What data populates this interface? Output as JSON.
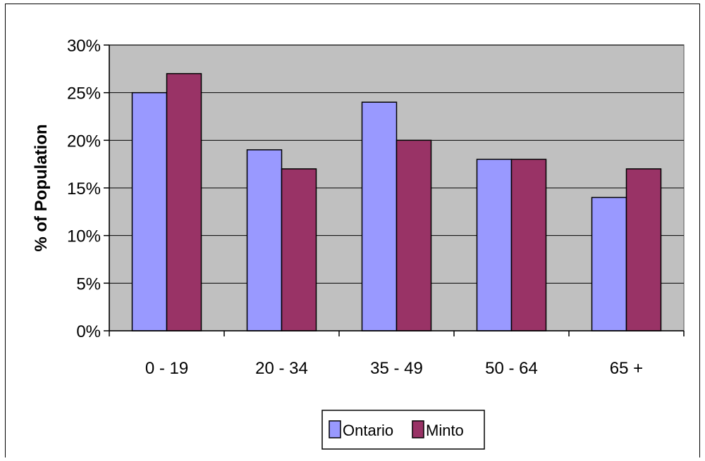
{
  "chart_data": {
    "type": "bar",
    "categories": [
      "0 - 19",
      "20 - 34",
      "35 - 49",
      "50 - 64",
      "65 +"
    ],
    "series": [
      {
        "name": "Ontario",
        "values": [
          25,
          19,
          24,
          18,
          14
        ],
        "color": "#9999ff"
      },
      {
        "name": "Minto",
        "values": [
          27,
          17,
          20,
          18,
          17
        ],
        "color": "#993366"
      }
    ],
    "ylabel": "% of Population",
    "xlabel": "",
    "ylim": [
      0,
      30
    ],
    "yticks": [
      0,
      5,
      10,
      15,
      20,
      25,
      30
    ],
    "ytick_labels": [
      "0%",
      "5%",
      "10%",
      "15%",
      "20%",
      "25%",
      "30%"
    ],
    "grid": true,
    "plot_background": "#c0c0c0",
    "legend_position": "bottom"
  }
}
